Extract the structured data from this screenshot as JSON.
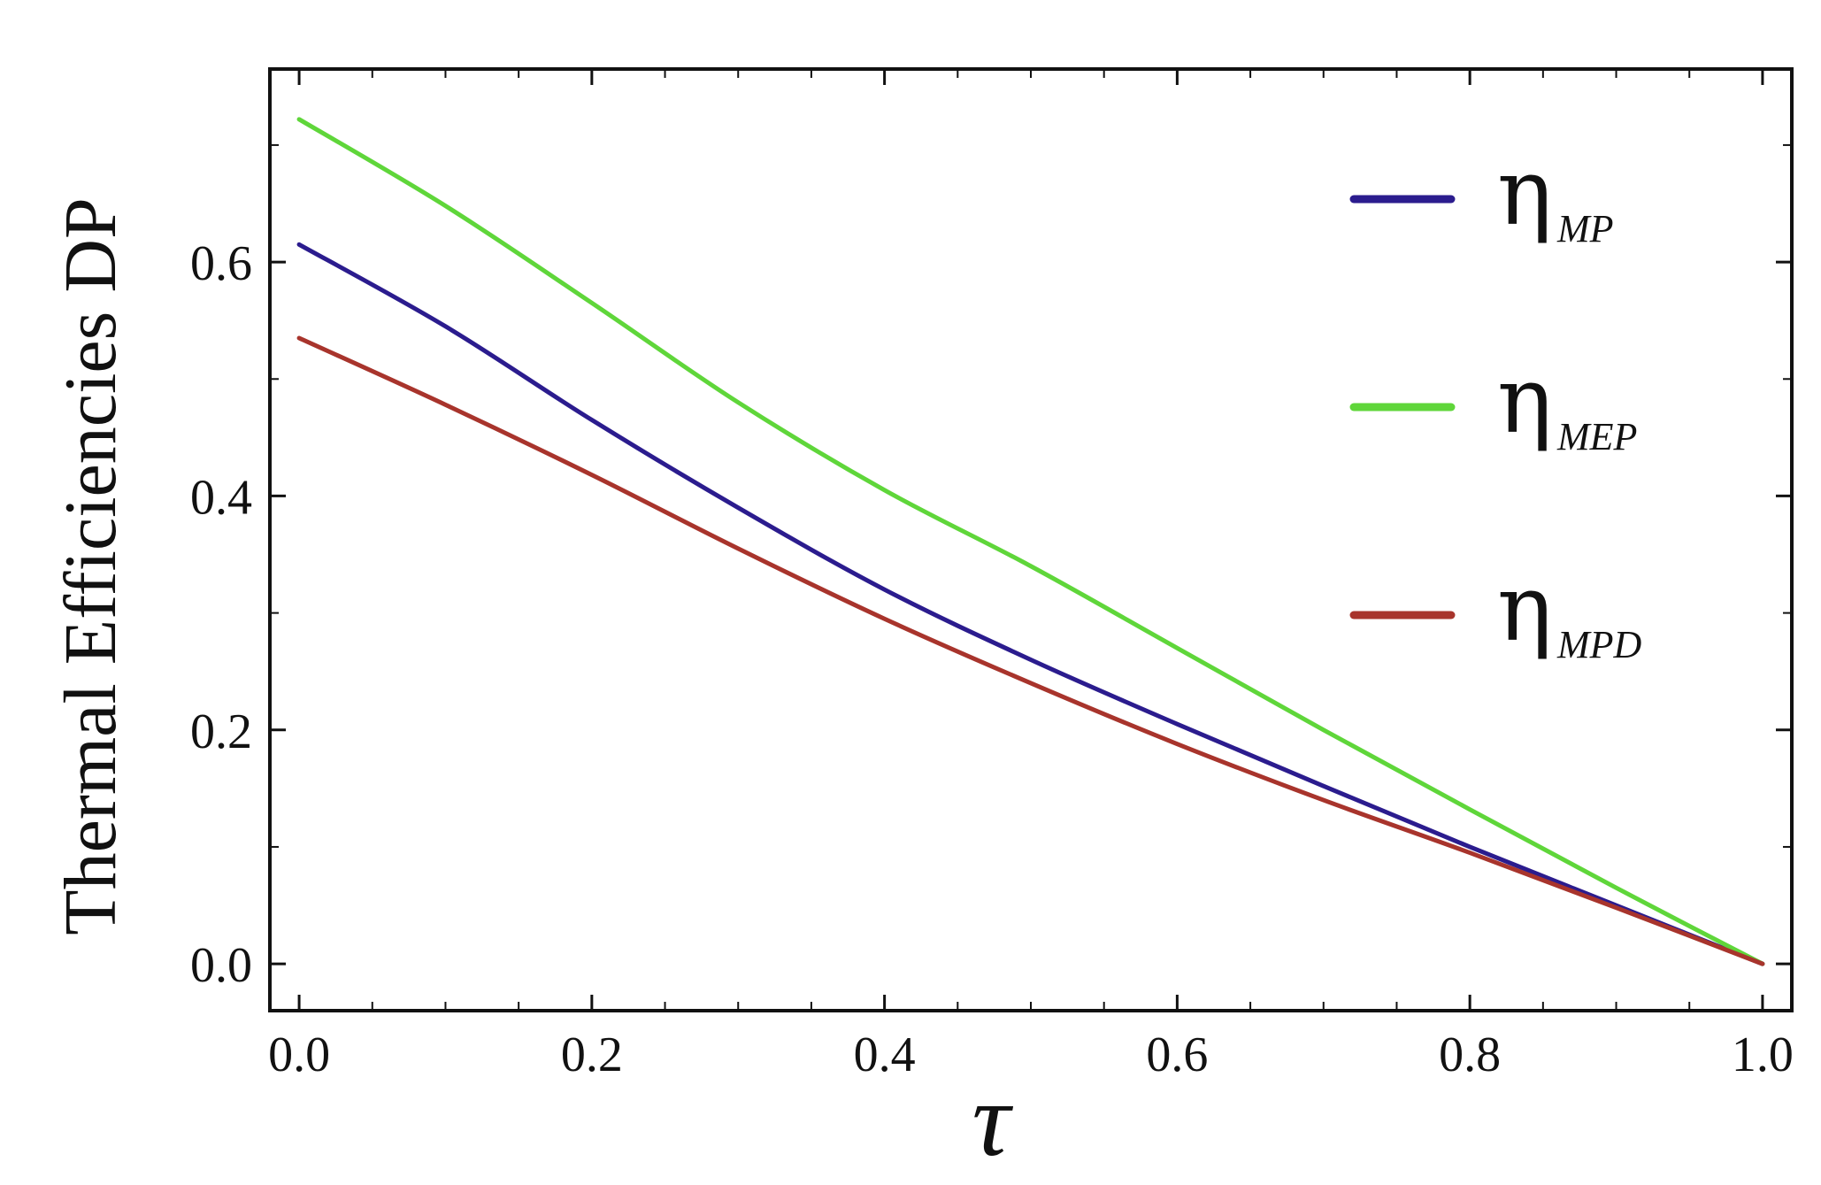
{
  "chart_data": {
    "type": "line",
    "title": "",
    "xlabel": "τ",
    "ylabel": "Thermal Efficiencies DP",
    "xlim": [
      -0.02,
      1.02
    ],
    "ylim": [
      -0.04,
      0.765
    ],
    "xticks": [
      0.0,
      0.2,
      0.4,
      0.6,
      0.8,
      1.0
    ],
    "xtick_labels": [
      "0.0",
      "0.2",
      "0.4",
      "0.6",
      "0.8",
      "1.0"
    ],
    "yticks": [
      0.0,
      0.2,
      0.4,
      0.6
    ],
    "ytick_labels": [
      "0.0",
      "0.2",
      "0.4",
      "0.6"
    ],
    "grid": false,
    "legend_position": "right",
    "series": [
      {
        "name": "η",
        "subscript": "MP",
        "color": "#2b1c8e",
        "x": [
          0.0,
          0.1,
          0.2,
          0.3,
          0.4,
          0.5,
          0.6,
          0.7,
          0.8,
          0.9,
          1.0
        ],
        "y": [
          0.615,
          0.545,
          0.465,
          0.39,
          0.32,
          0.26,
          0.205,
          0.152,
          0.1,
          0.05,
          0.0
        ]
      },
      {
        "name": "η",
        "subscript": "MEP",
        "color": "#5fd63a",
        "x": [
          0.0,
          0.1,
          0.2,
          0.3,
          0.4,
          0.5,
          0.6,
          0.7,
          0.8,
          0.9,
          1.0
        ],
        "y": [
          0.722,
          0.648,
          0.565,
          0.48,
          0.405,
          0.34,
          0.27,
          0.2,
          0.132,
          0.065,
          0.0
        ]
      },
      {
        "name": "η",
        "subscript": "MPD",
        "color": "#a8342c",
        "x": [
          0.0,
          0.1,
          0.2,
          0.3,
          0.4,
          0.5,
          0.6,
          0.7,
          0.8,
          0.9,
          1.0
        ],
        "y": [
          0.535,
          0.478,
          0.418,
          0.355,
          0.295,
          0.24,
          0.188,
          0.14,
          0.095,
          0.048,
          0.0
        ]
      }
    ]
  }
}
